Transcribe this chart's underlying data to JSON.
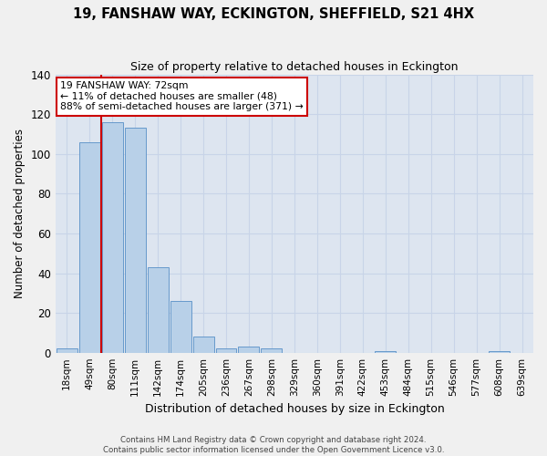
{
  "title": "19, FANSHAW WAY, ECKINGTON, SHEFFIELD, S21 4HX",
  "subtitle": "Size of property relative to detached houses in Eckington",
  "xlabel": "Distribution of detached houses by size in Eckington",
  "ylabel": "Number of detached properties",
  "bin_labels": [
    "18sqm",
    "49sqm",
    "80sqm",
    "111sqm",
    "142sqm",
    "174sqm",
    "205sqm",
    "236sqm",
    "267sqm",
    "298sqm",
    "329sqm",
    "360sqm",
    "391sqm",
    "422sqm",
    "453sqm",
    "484sqm",
    "515sqm",
    "546sqm",
    "577sqm",
    "608sqm",
    "639sqm"
  ],
  "bar_heights": [
    2,
    106,
    116,
    113,
    43,
    26,
    8,
    2,
    3,
    2,
    0,
    0,
    0,
    0,
    1,
    0,
    0,
    0,
    0,
    1,
    0
  ],
  "bar_color": "#b8d0e8",
  "bar_edge_color": "#6699cc",
  "property_line_x": 1.5,
  "annotation_text": "19 FANSHAW WAY: 72sqm\n← 11% of detached houses are smaller (48)\n88% of semi-detached houses are larger (371) →",
  "annotation_box_color": "#ffffff",
  "annotation_box_edge_color": "#cc0000",
  "line_color": "#cc0000",
  "ylim": [
    0,
    140
  ],
  "yticks": [
    0,
    20,
    40,
    60,
    80,
    100,
    120,
    140
  ],
  "grid_color": "#c8d4e8",
  "background_color": "#dde5f0",
  "fig_background": "#f0f0f0",
  "footer_line1": "Contains HM Land Registry data © Crown copyright and database right 2024.",
  "footer_line2": "Contains public sector information licensed under the Open Government Licence v3.0."
}
